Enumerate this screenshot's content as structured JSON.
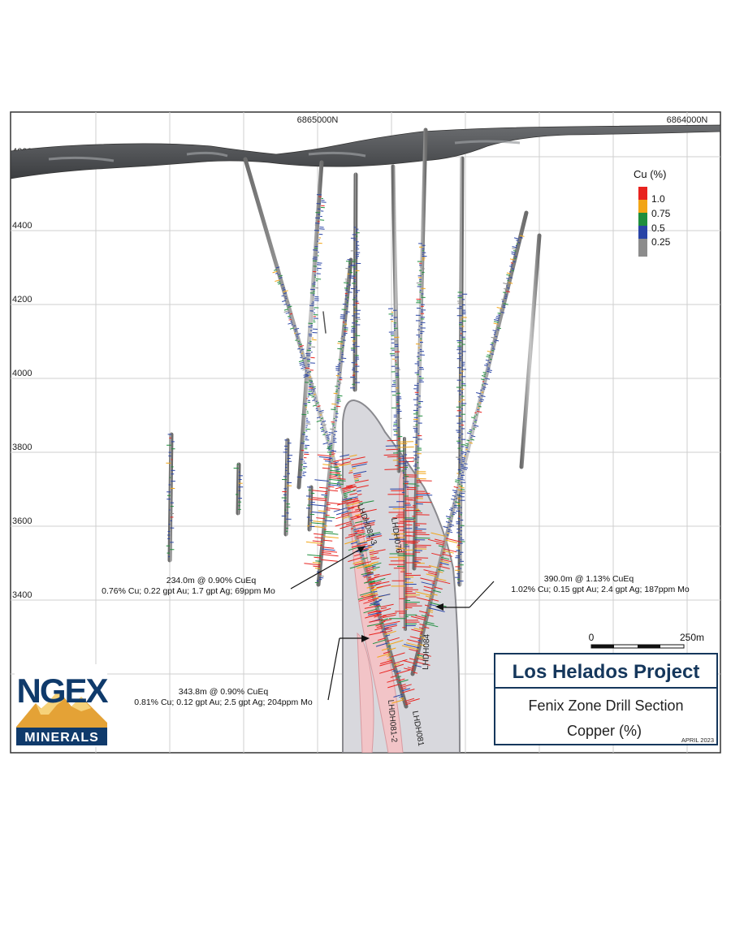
{
  "grid": {
    "northings": [
      "6865000N",
      "6864000N"
    ],
    "elevations": [
      {
        "label": "4600masl",
        "value": 4600
      },
      {
        "label": "4400",
        "value": 4400
      },
      {
        "label": "4200",
        "value": 4200
      },
      {
        "label": "4000",
        "value": 4000
      },
      {
        "label": "3800",
        "value": 3800
      },
      {
        "label": "3600",
        "value": 3600
      },
      {
        "label": "3400",
        "value": 3400
      }
    ]
  },
  "legend": {
    "title": "Cu (%)",
    "items": [
      {
        "label": "1.0",
        "color": "#e8231f"
      },
      {
        "label": "0.75",
        "color": "#f2a516"
      },
      {
        "label": "0.5",
        "color": "#1e8e3e"
      },
      {
        "label": "0.25",
        "color": "#2944a6"
      },
      {
        "label": "",
        "color": "#8c8c8c"
      }
    ]
  },
  "drillholes": {
    "labels": [
      "LHDH081-3",
      "LHDH076",
      "LHDH084",
      "LHDH081-2",
      "LHDH081"
    ]
  },
  "intercepts": [
    {
      "headline": "234.0m @ 0.90% CuEq",
      "detail": "0.76% Cu; 0.22 gpt Au; 1.7 gpt Ag; 69ppm Mo"
    },
    {
      "headline": "390.0m @ 1.13% CuEq",
      "detail": "1.02% Cu; 0.15 gpt Au; 2.4 gpt Ag; 187ppm Mo"
    },
    {
      "headline": "343.8m @ 0.90% CuEq",
      "detail": "0.81% Cu; 0.12 gpt Au; 2.5 gpt Ag; 204ppm Mo"
    }
  ],
  "scale_bar": {
    "start": "0",
    "end": "250m"
  },
  "title_box": {
    "title": "Los Helados Project",
    "subtitle_1": "Fenix Zone Drill Section",
    "subtitle_2": "Copper (%)",
    "date": "APRIL 2023"
  },
  "logo": {
    "top_text": "NGEX",
    "bottom_text": "MINERALS"
  },
  "colors": {
    "logo_navy": "#0f3a6b",
    "logo_gold": "#e4a236",
    "title_navy": "#15375c",
    "zone_fill": "#d9d9de",
    "zone_inner": "#f2c5c8",
    "terrain": "#55575b"
  }
}
